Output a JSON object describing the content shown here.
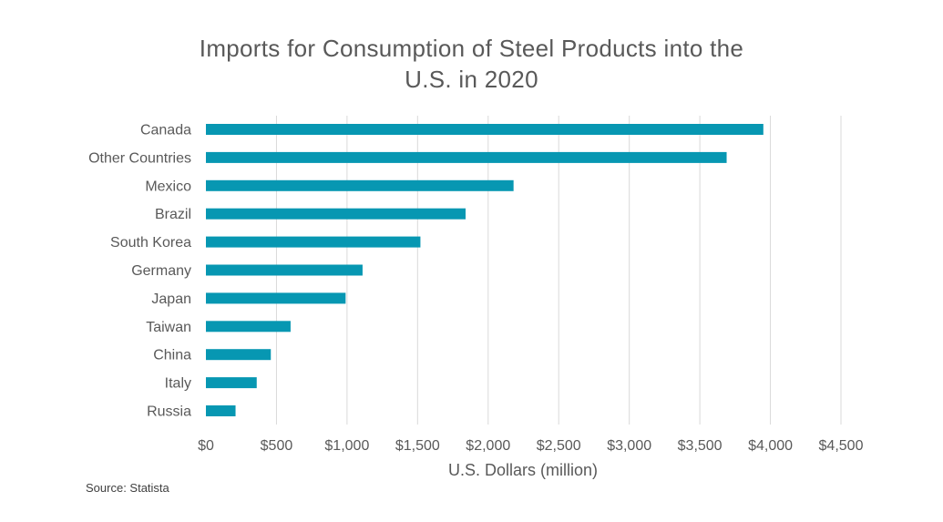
{
  "chart_data": {
    "type": "bar",
    "orientation": "horizontal",
    "title": [
      "Imports for Consumption of Steel Products into the",
      "U.S. in 2020"
    ],
    "categories": [
      "Canada",
      "Other Countries",
      "Mexico",
      "Brazil",
      "South Korea",
      "Germany",
      "Japan",
      "Taiwan",
      "China",
      "Italy",
      "Russia"
    ],
    "values": [
      3950,
      3690,
      2180,
      1840,
      1520,
      1110,
      990,
      600,
      460,
      360,
      210
    ],
    "xlabel": "U.S. Dollars (million)",
    "ylabel": "",
    "xlim": [
      0,
      4500
    ],
    "x_ticks": [
      0,
      500,
      1000,
      1500,
      2000,
      2500,
      3000,
      3500,
      4000,
      4500
    ],
    "x_tick_labels": [
      "$0",
      "$500",
      "$1,000",
      "$1,500",
      "$2,000",
      "$2,500",
      "$3,000",
      "$3,500",
      "$4,000",
      "$4,500"
    ],
    "grid": "vertical",
    "bar_color": "#0797B2",
    "grid_color": "#D9D9D9"
  },
  "source": "Source: Statista"
}
